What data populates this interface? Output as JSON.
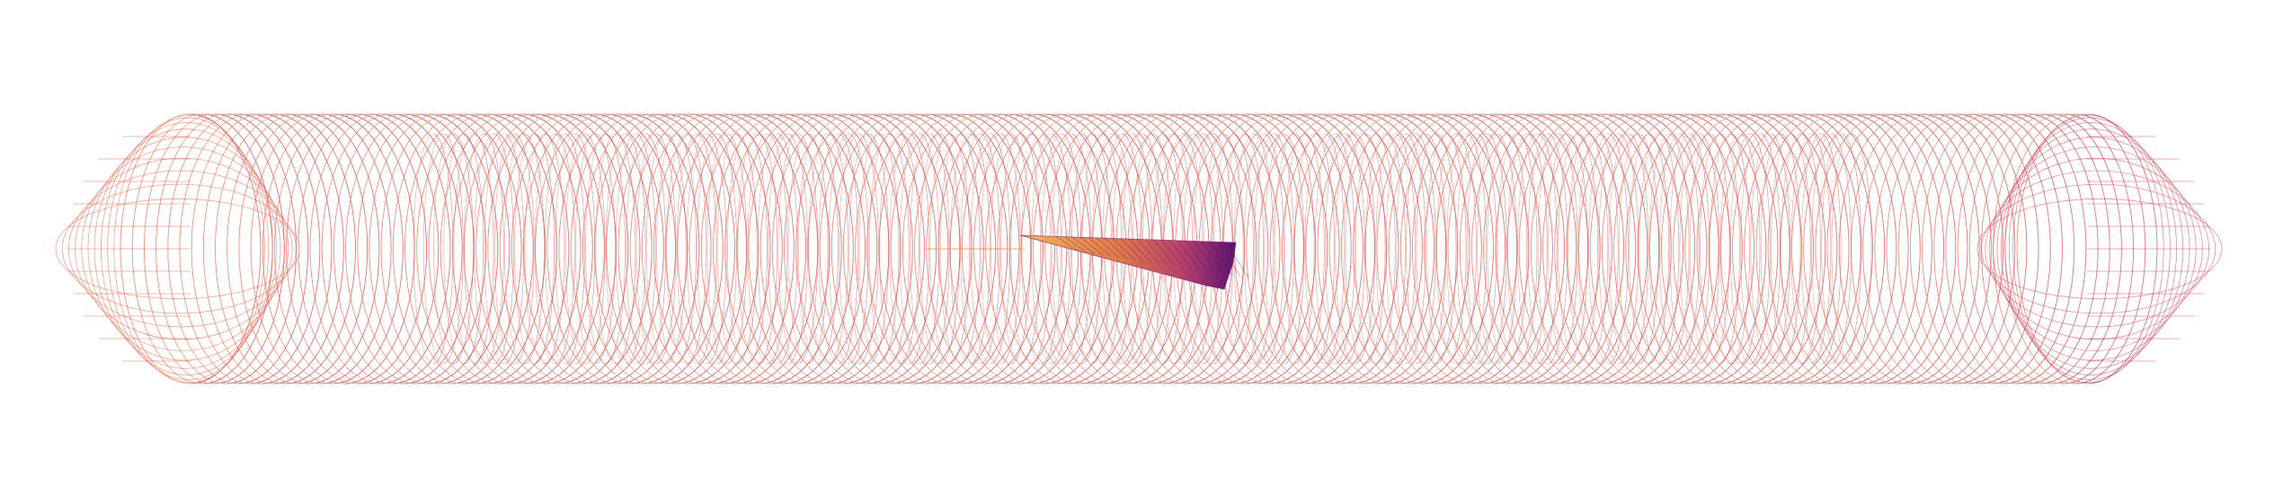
{
  "figure": {
    "background": "#ffffff",
    "description_free": true
  },
  "mesh": {
    "shape": "capsule-tube",
    "style": "wireframe",
    "colormap": [
      "#f3a25a",
      "#e46a4c",
      "#c43c64",
      "#8a1f7a",
      "#5a1574"
    ],
    "outer_rings": 160,
    "inner_rings": 140,
    "longitudinal_lines": 30
  },
  "wedge": {
    "style": "filled-gradient",
    "colors": [
      "#f6b55a",
      "#e07a4a",
      "#b8406a",
      "#5c1370"
    ]
  }
}
